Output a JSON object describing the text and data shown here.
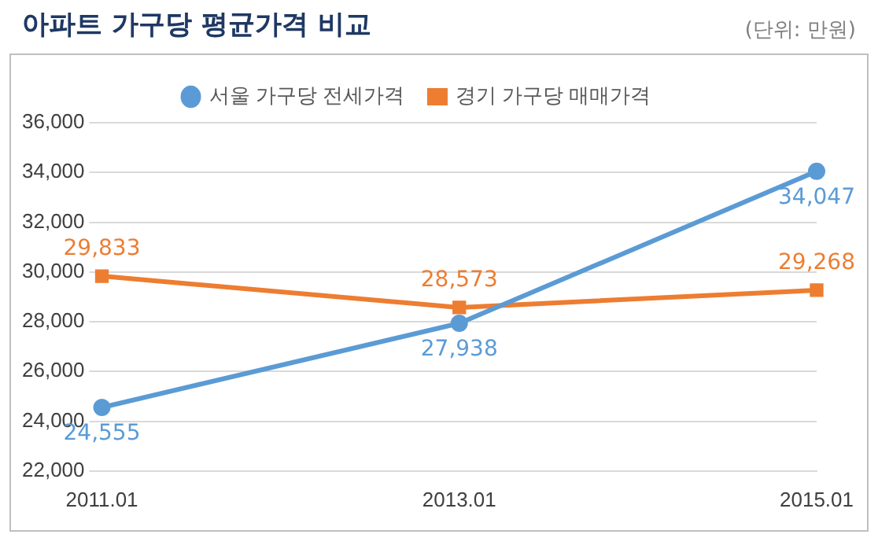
{
  "chart_data": {
    "type": "line",
    "title": "아파트 가구당 평균가격 비교",
    "annotations": [
      "(단위: 만원)"
    ],
    "categories": [
      "2011.01",
      "2013.01",
      "2015.01"
    ],
    "series": [
      {
        "name": "서울 가구당 전세가격",
        "color": "#5b9bd5",
        "marker": "circle",
        "values": [
          24555,
          27938,
          34047
        ],
        "value_labels": [
          "24,555",
          "27,938",
          "34,047"
        ]
      },
      {
        "name": "경기 가구당 매매가격",
        "color": "#ed7d31",
        "marker": "square",
        "values": [
          29833,
          28573,
          29268
        ],
        "value_labels": [
          "29,833",
          "28,573",
          "29,268"
        ]
      }
    ],
    "ylim": [
      22000,
      36000
    ],
    "yticks": [
      {
        "value": 22000,
        "label": "22,000"
      },
      {
        "value": 24000,
        "label": "24,000"
      },
      {
        "value": 26000,
        "label": "26,000"
      },
      {
        "value": 28000,
        "label": "28,000"
      },
      {
        "value": 30000,
        "label": "30,000"
      },
      {
        "value": 32000,
        "label": "32,000"
      },
      {
        "value": 34000,
        "label": "34,000"
      },
      {
        "value": 36000,
        "label": "36,000"
      }
    ],
    "grid": "y",
    "legend": "top"
  }
}
